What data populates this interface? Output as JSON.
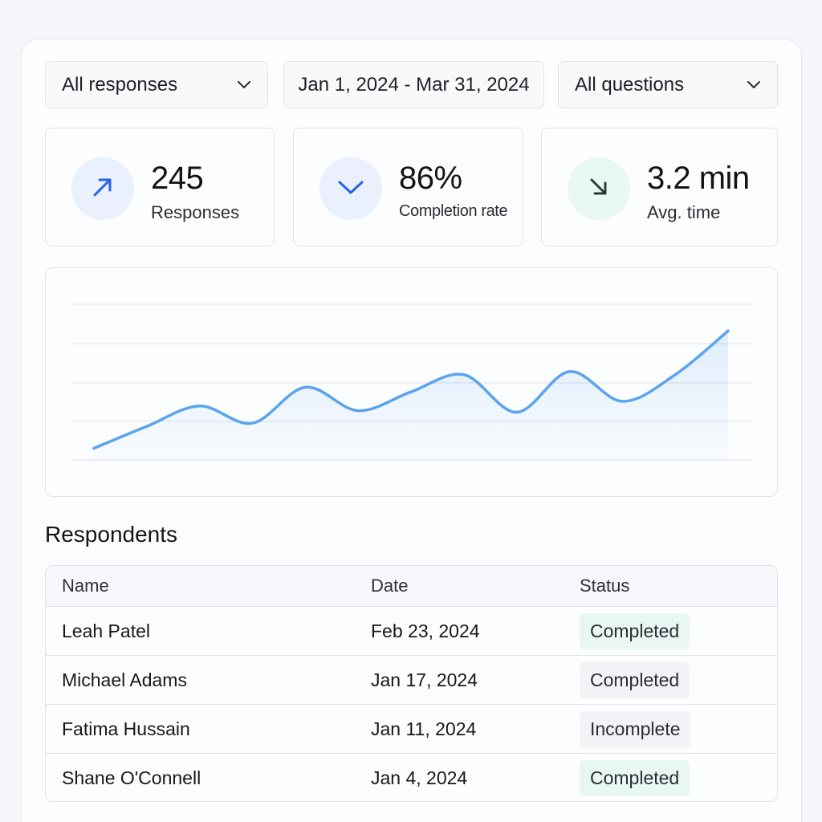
{
  "filters": {
    "responses": "All responses",
    "date_range": "Jan 1, 2024 - Mar 31, 2024",
    "questions": "All questions"
  },
  "stats": [
    {
      "value": "245",
      "label": "Responses",
      "icon": "arrow-up-right-icon",
      "icon_color": "#2563eb",
      "bg": "#eaf1fd"
    },
    {
      "value": "86%",
      "label": "Completion rate",
      "icon": "check-icon",
      "icon_color": "#2563eb",
      "bg": "#eaf1fd"
    },
    {
      "value": "3.2 min",
      "label": "Avg. time",
      "icon": "arrow-down-right-icon",
      "icon_color": "#2f3a3a",
      "bg": "#e9f8f3"
    }
  ],
  "chart_data": {
    "type": "area",
    "title": "",
    "xlabel": "",
    "ylabel": "",
    "grid": true,
    "ylim": [
      0,
      100
    ],
    "x": [
      1,
      2,
      3,
      4,
      5,
      6,
      7,
      8,
      9,
      10,
      11,
      12,
      13
    ],
    "series": [
      {
        "values": [
          8,
          22,
          35,
          24,
          47,
          32,
          44,
          55,
          31,
          57,
          38,
          55,
          83
        ]
      }
    ],
    "color": "#5aa4ee"
  },
  "respondents": {
    "title": "Respondents",
    "columns": [
      "Name",
      "Date",
      "Status"
    ],
    "rows": [
      {
        "name": "Leah Patel",
        "date": "Feb 23, 2024",
        "status": "Completed"
      },
      {
        "name": "Michael Adams",
        "date": "Jan 17, 2024",
        "status": "Completed"
      },
      {
        "name": "Fatima Hussain",
        "date": "Jan 11, 2024",
        "status": "Incomplete"
      },
      {
        "name": "Shane O'Connell",
        "date": "Jan 4, 2024",
        "status": "Completed"
      }
    ]
  }
}
